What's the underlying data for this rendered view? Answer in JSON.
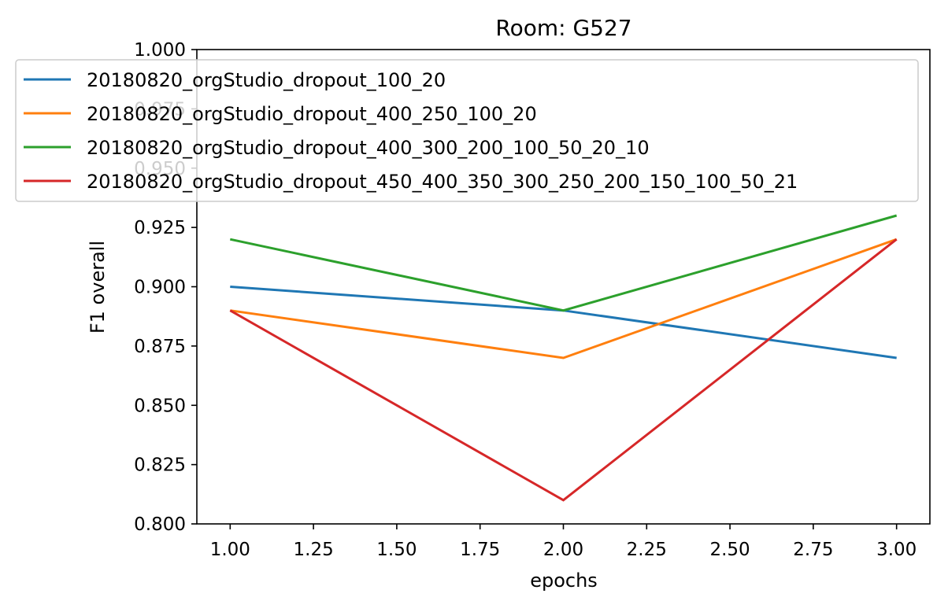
{
  "chart_data": {
    "type": "line",
    "title": "Room: G527",
    "xlabel": "epochs",
    "ylabel": "F1 overall",
    "xlim": [
      0.9,
      3.1
    ],
    "ylim": [
      0.8,
      1.0
    ],
    "xticks": [
      1.0,
      1.25,
      1.5,
      1.75,
      2.0,
      2.25,
      2.5,
      2.75,
      3.0
    ],
    "xtick_labels": [
      "1.00",
      "1.25",
      "1.50",
      "1.75",
      "2.00",
      "2.25",
      "2.50",
      "2.75",
      "3.00"
    ],
    "yticks": [
      0.8,
      0.825,
      0.85,
      0.875,
      0.9,
      0.925,
      0.95,
      0.975,
      1.0
    ],
    "ytick_labels": [
      "0.800",
      "0.825",
      "0.850",
      "0.875",
      "0.900",
      "0.925",
      "0.950",
      "0.975",
      "1.000"
    ],
    "grid": false,
    "legend_position": "upper-left",
    "x": [
      1,
      2,
      3
    ],
    "series": [
      {
        "name": "20180820_orgStudio_dropout_100_20",
        "color": "#1f77b4",
        "values": [
          0.9,
          0.89,
          0.87
        ]
      },
      {
        "name": "20180820_orgStudio_dropout_400_250_100_20",
        "color": "#ff7f0e",
        "values": [
          0.89,
          0.87,
          0.92
        ]
      },
      {
        "name": "20180820_orgStudio_dropout_400_300_200_100_50_20_10",
        "color": "#2ca02c",
        "values": [
          0.92,
          0.89,
          0.93
        ]
      },
      {
        "name": "20180820_orgStudio_dropout_450_400_350_300_250_200_150_100_50_21",
        "color": "#d62728",
        "values": [
          0.89,
          0.81,
          0.92
        ]
      }
    ]
  }
}
